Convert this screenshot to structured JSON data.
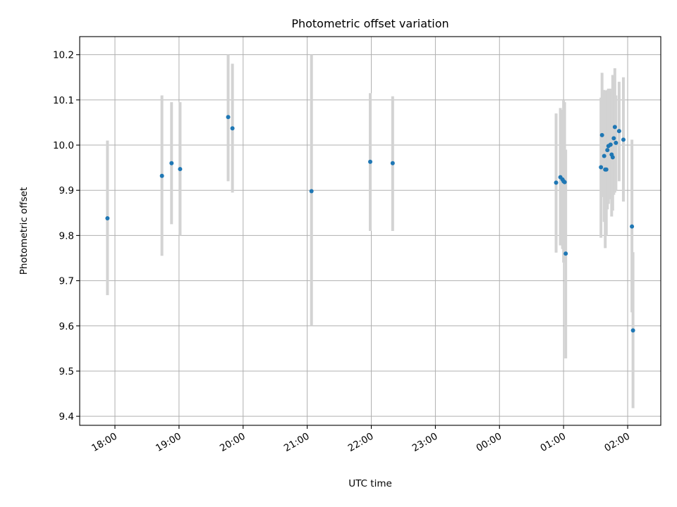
{
  "chart_data": {
    "type": "scatter",
    "title": "Photometric offset variation",
    "xlabel": "UTC time",
    "ylabel": "Photometric offset",
    "x_unit": "UTC time (hh:mm), starting 17:27 on day 1; values past 24:00 are on the following day",
    "xlim": [
      "17:27",
      "02:31"
    ],
    "ylim": [
      9.38,
      10.24
    ],
    "xticks": [
      "18:00",
      "19:00",
      "20:00",
      "21:00",
      "22:00",
      "23:00",
      "00:00",
      "01:00",
      "02:00"
    ],
    "yticks": [
      9.4,
      9.5,
      9.6,
      9.7,
      9.8,
      9.9,
      10.0,
      10.1,
      10.2
    ],
    "grid": true,
    "marker_color": "#1f77b4",
    "errorbar_color": "#d3d3d3",
    "series": [
      {
        "points": [
          {
            "x": "17:53",
            "y": 9.838,
            "low": 9.668,
            "high": 10.01
          },
          {
            "x": "18:44",
            "y": 9.932,
            "low": 9.755,
            "high": 10.11
          },
          {
            "x": "18:53",
            "y": 9.96,
            "low": 9.825,
            "high": 10.095
          },
          {
            "x": "19:01",
            "y": 9.947,
            "low": 9.8,
            "high": 10.095
          },
          {
            "x": "19:46",
            "y": 10.062,
            "low": 9.92,
            "high": 10.2
          },
          {
            "x": "19:50",
            "y": 10.037,
            "low": 9.895,
            "high": 10.18
          },
          {
            "x": "21:04",
            "y": 9.898,
            "low": 9.6,
            "high": 10.2
          },
          {
            "x": "21:59",
            "y": 9.963,
            "low": 9.81,
            "high": 10.115
          },
          {
            "x": "22:20",
            "y": 9.96,
            "low": 9.81,
            "high": 10.108
          },
          {
            "x": "00:53",
            "y": 9.917,
            "low": 9.762,
            "high": 10.07
          },
          {
            "x": "00:57",
            "y": 9.929,
            "low": 9.778,
            "high": 10.082
          },
          {
            "x": "00:59",
            "y": 9.924,
            "low": 9.77,
            "high": 10.078
          },
          {
            "x": "01:00",
            "y": 9.92,
            "low": 9.74,
            "high": 10.1
          },
          {
            "x": "01:01",
            "y": 9.918,
            "low": 9.745,
            "high": 10.095
          },
          {
            "x": "01:02",
            "y": 9.76,
            "low": 9.528,
            "high": 9.99
          },
          {
            "x": "01:35",
            "y": 9.951,
            "low": 9.795,
            "high": 10.105
          },
          {
            "x": "01:36",
            "y": 10.022,
            "low": 9.885,
            "high": 10.16
          },
          {
            "x": "01:38",
            "y": 9.976,
            "low": 9.83,
            "high": 10.122
          },
          {
            "x": "01:39",
            "y": 9.946,
            "low": 9.772,
            "high": 10.12
          },
          {
            "x": "01:40",
            "y": 9.946,
            "low": 9.8,
            "high": 10.095
          },
          {
            "x": "01:41",
            "y": 9.989,
            "low": 9.858,
            "high": 10.122
          },
          {
            "x": "01:42",
            "y": 9.998,
            "low": 9.87,
            "high": 10.125
          },
          {
            "x": "01:44",
            "y": 10.001,
            "low": 9.88,
            "high": 10.125
          },
          {
            "x": "01:45",
            "y": 9.979,
            "low": 9.842,
            "high": 10.118
          },
          {
            "x": "01:46",
            "y": 9.973,
            "low": 9.855,
            "high": 10.155
          },
          {
            "x": "01:47",
            "y": 10.015,
            "low": 9.89,
            "high": 10.14
          },
          {
            "x": "01:48",
            "y": 10.04,
            "low": 9.895,
            "high": 10.17
          },
          {
            "x": "01:49",
            "y": 10.005,
            "low": 9.9,
            "high": 10.11
          },
          {
            "x": "01:52",
            "y": 10.031,
            "low": 9.92,
            "high": 10.14
          },
          {
            "x": "01:56",
            "y": 10.012,
            "low": 9.875,
            "high": 10.15
          },
          {
            "x": "02:04",
            "y": 9.82,
            "low": 9.63,
            "high": 10.012
          },
          {
            "x": "02:05",
            "y": 9.59,
            "low": 9.418,
            "high": 9.763
          }
        ]
      }
    ]
  }
}
